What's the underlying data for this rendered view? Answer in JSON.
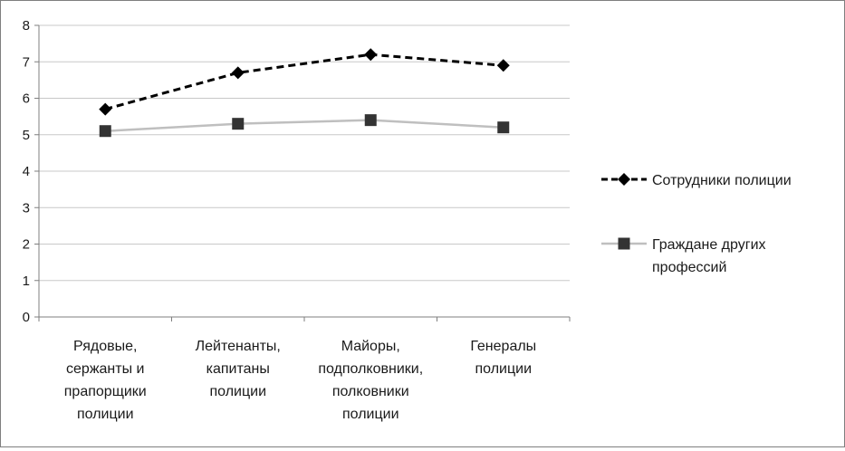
{
  "chart_data": {
    "type": "line",
    "categories": [
      [
        "Рядовые,",
        "сержанты и",
        "прапорщики",
        "полиции"
      ],
      [
        "Лейтенанты,",
        "капитаны",
        "полиции"
      ],
      [
        "Майоры,",
        "подполковники,",
        "полковники",
        "полиции"
      ],
      [
        "Генералы",
        "полиции"
      ]
    ],
    "series": [
      {
        "name_lines": [
          "Сотрудники полиции"
        ],
        "values": [
          5.7,
          6.7,
          7.2,
          6.9
        ],
        "color": "#000000",
        "line_style": "dashed",
        "marker": "diamond"
      },
      {
        "name_lines": [
          "Граждане других",
          "профессий"
        ],
        "values": [
          5.1,
          5.3,
          5.4,
          5.2
        ],
        "line_color": "#bfbfbf",
        "marker_color": "#333333",
        "line_style": "solid",
        "marker": "square"
      }
    ],
    "y_ticks": [
      "0",
      "1",
      "2",
      "3",
      "4",
      "5",
      "6",
      "7",
      "8"
    ],
    "ylim": [
      0,
      8
    ],
    "grid": true,
    "legend_position": "right"
  }
}
